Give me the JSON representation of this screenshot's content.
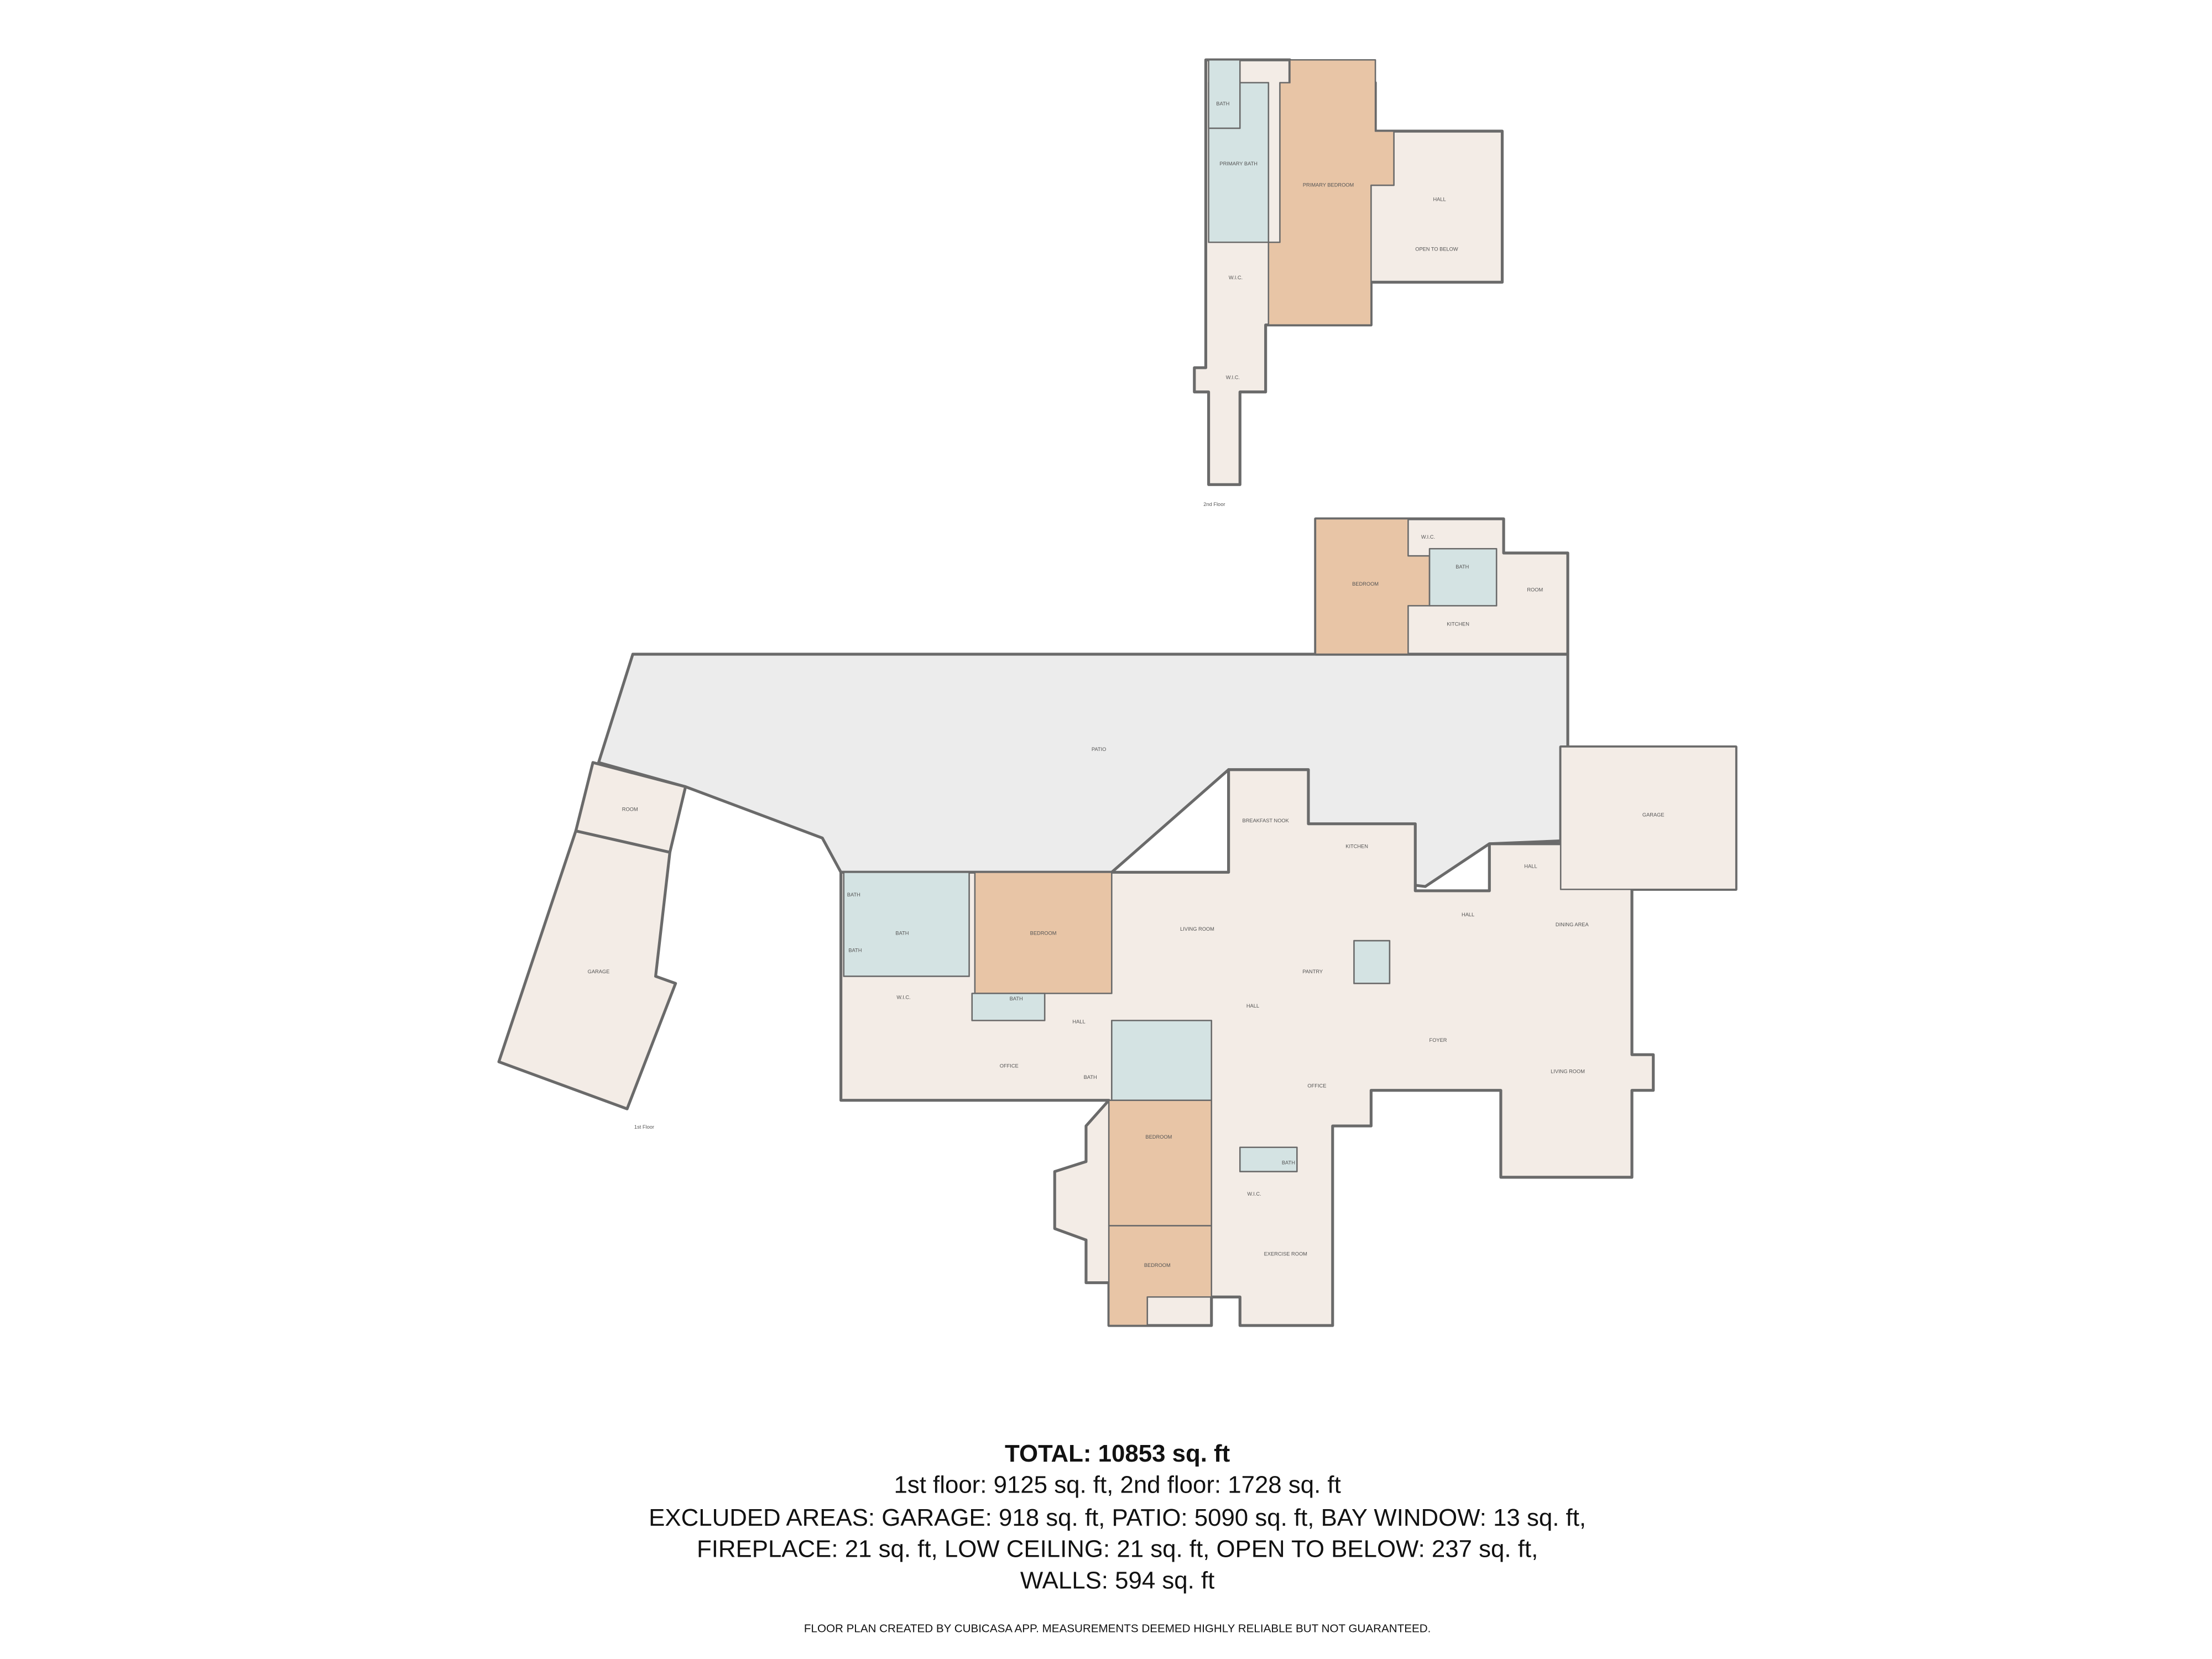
{
  "second_floor": {
    "label": "2nd Floor",
    "rooms": [
      "BATH",
      "PRIMARY BATH",
      "PRIMARY BEDROOM",
      "W.I.C.",
      "HALL",
      "OPEN TO BELOW",
      "W.I.C."
    ]
  },
  "first_floor": {
    "label": "1st Floor",
    "rooms": [
      "PATIO",
      "BEDROOM",
      "W.I.C.",
      "BATH",
      "KITCHEN",
      "ROOM",
      "ROOM",
      "GARAGE",
      "GARAGE",
      "BREAKFAST NOOK",
      "KITCHEN",
      "HALL",
      "HALL",
      "DINING AREA",
      "LIVING ROOM",
      "FOYER",
      "OFFICE",
      "BEDROOM",
      "LIVING ROOM",
      "BATH",
      "BATH",
      "BATH",
      "W.I.C.",
      "BATH",
      "HALL",
      "HALL",
      "OFFICE",
      "BATH",
      "BEDROOM",
      "BEDROOM",
      "BATH",
      "W.I.C.",
      "EXERCISE ROOM",
      "PANTRY"
    ]
  },
  "summary": {
    "total": "TOTAL: 10853 sq. ft",
    "lines": [
      "1st floor: 9125 sq. ft, 2nd floor: 1728 sq. ft",
      "EXCLUDED AREAS: GARAGE: 918 sq. ft, PATIO: 5090 sq. ft, BAY WINDOW: 13 sq. ft,",
      "FIREPLACE: 21 sq. ft, LOW CEILING: 21 sq. ft, OPEN TO BELOW: 237 sq. ft,",
      "WALLS: 594 sq. ft"
    ],
    "disclaimer": "FLOOR PLAN CREATED BY CUBICASA APP. MEASUREMENTS DEEMED HIGHLY RELIABLE BUT NOT GUARANTEED."
  }
}
